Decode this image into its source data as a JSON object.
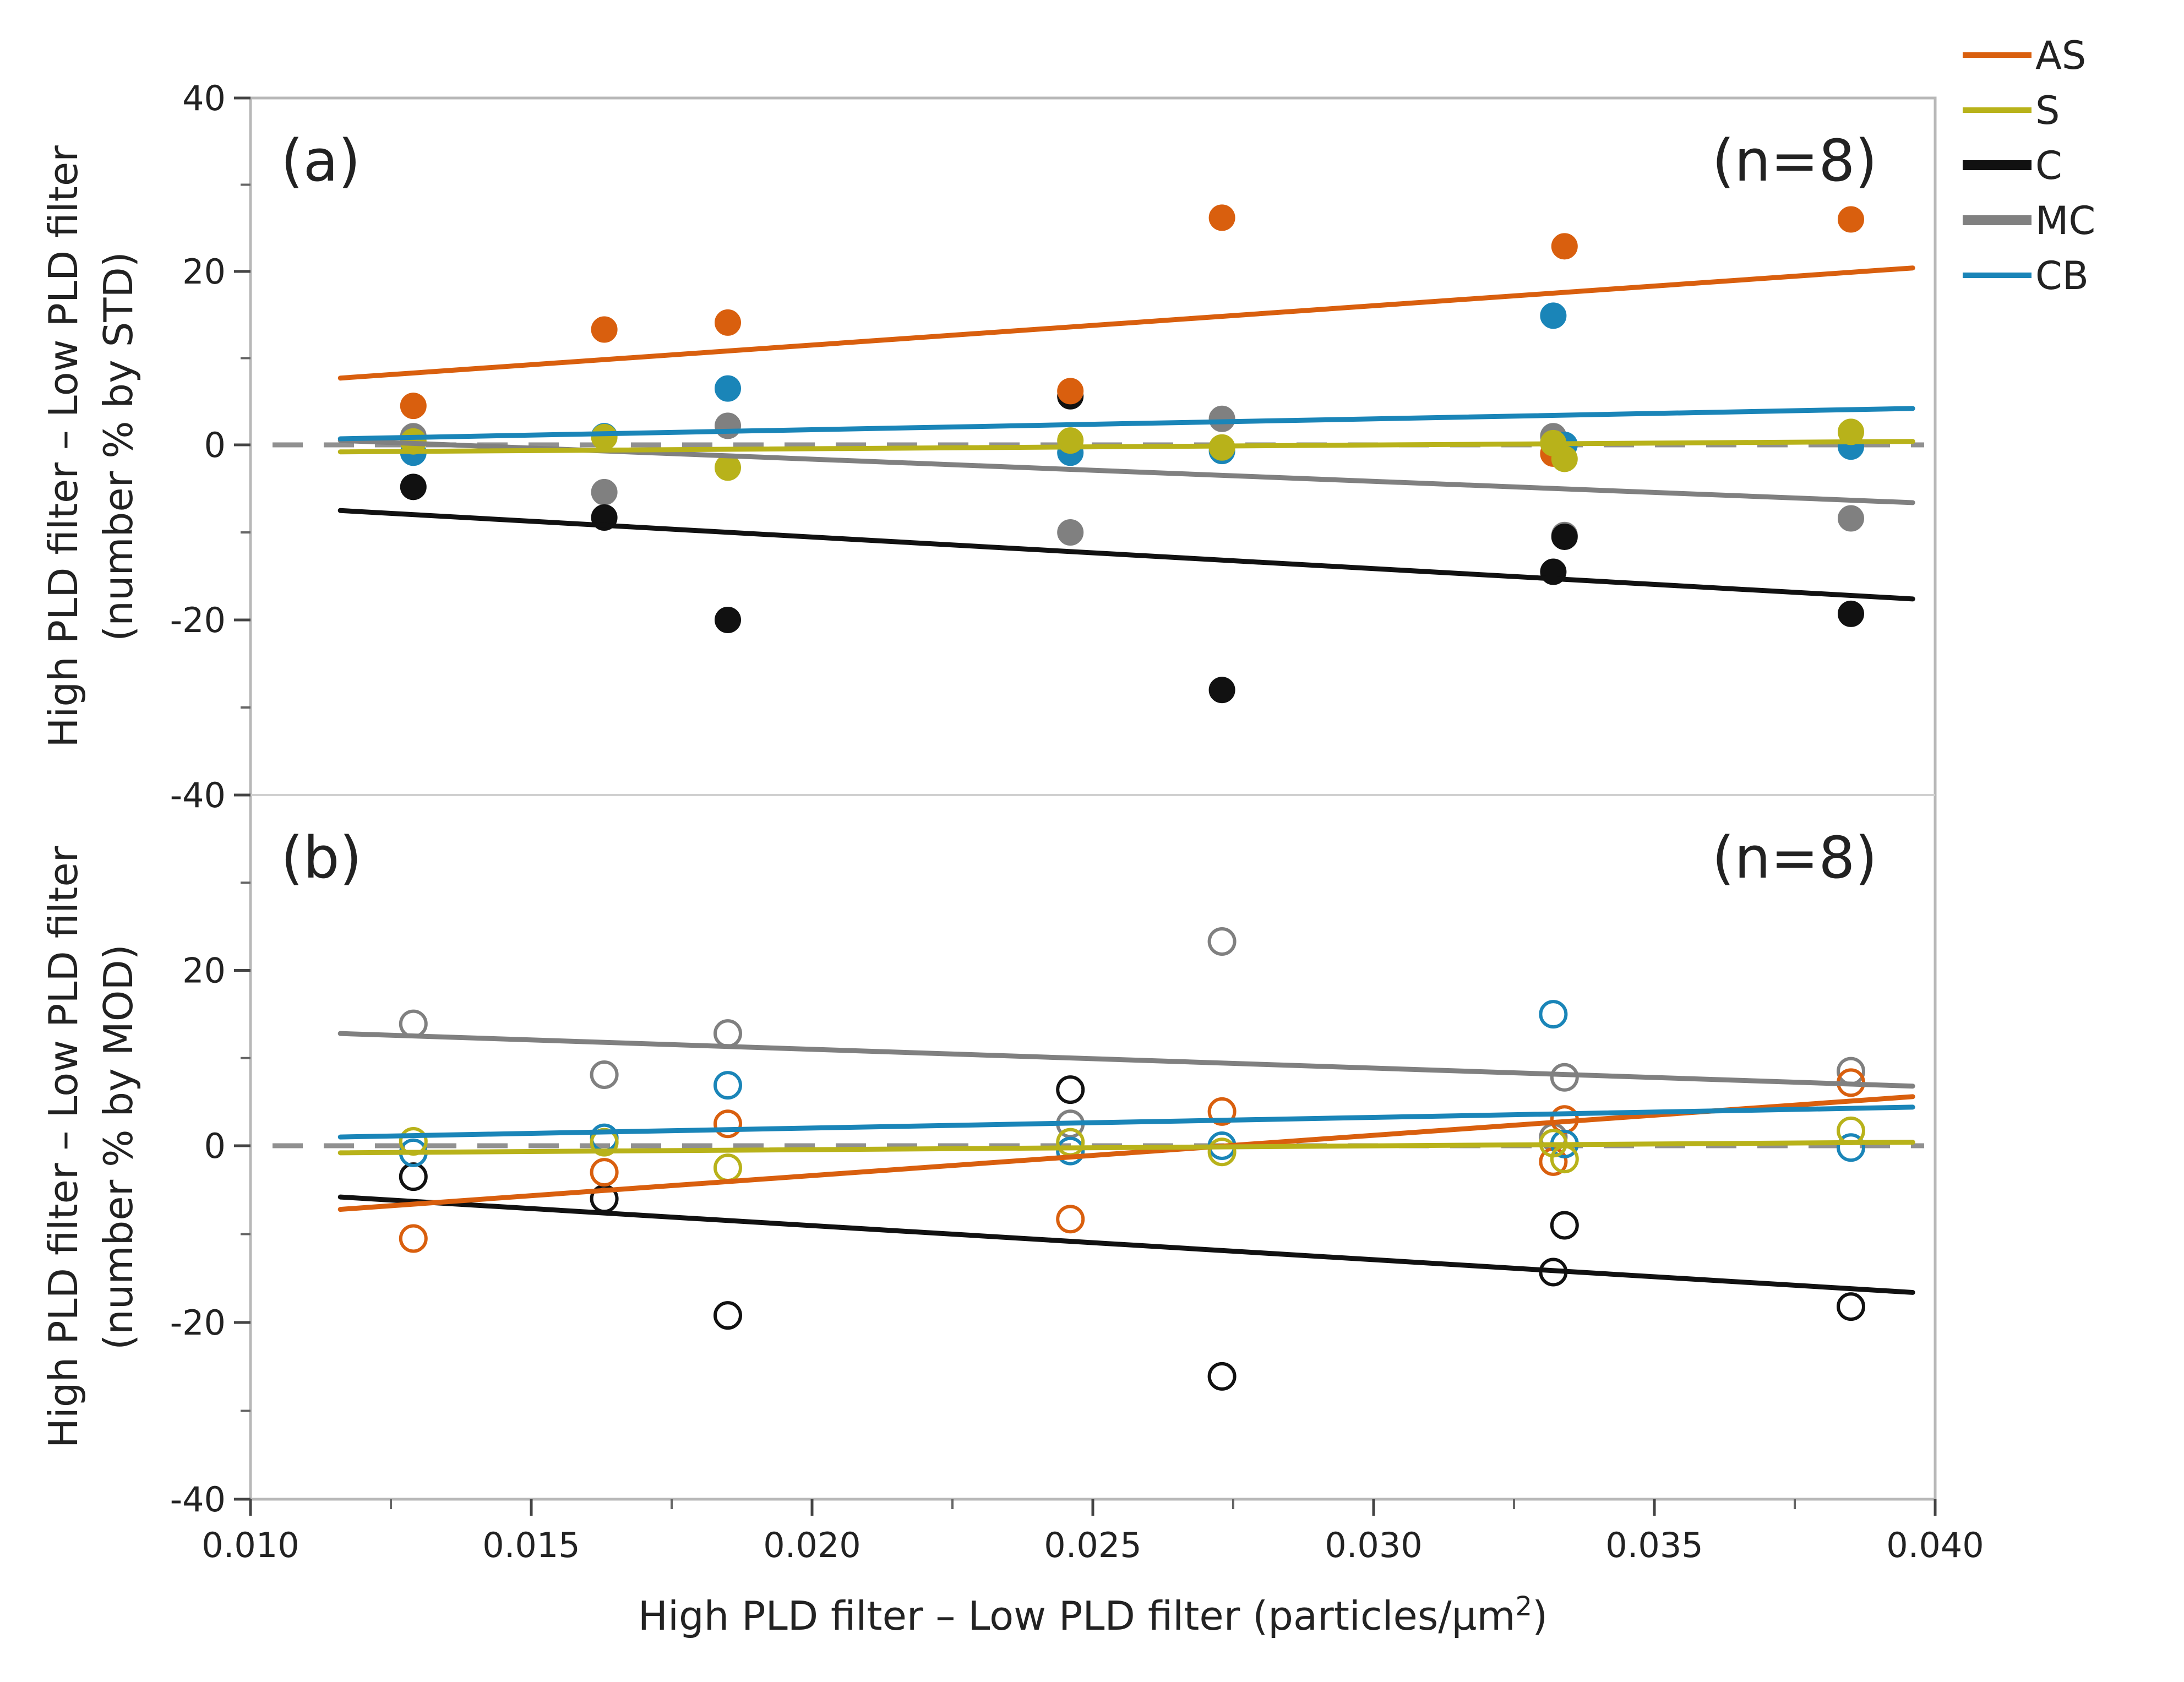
{
  "chart_data": {
    "type": "scatter",
    "xlabel_main": "High PLD filter – Low PLD filter (particles/µm",
    "xlabel_sup": "2",
    "xlabel_close": ")",
    "x_ticks": [
      "0.010",
      "0.015",
      "0.020",
      "0.025",
      "0.030",
      "0.035",
      "0.040"
    ],
    "x_tick_values": [
      0.01,
      0.015,
      0.02,
      0.025,
      0.03,
      0.035,
      0.04
    ],
    "xlim": [
      0.01,
      0.04
    ],
    "x": [
      0.0129,
      0.0163,
      0.0185,
      0.0246,
      0.0273,
      0.0332,
      0.0334,
      0.0385
    ],
    "fit_x_range": [
      0.0116,
      0.0396
    ],
    "legend": [
      {
        "name": "AS",
        "color": "#d95f0e"
      },
      {
        "name": "S",
        "color": "#b8b21a"
      },
      {
        "name": "C",
        "color": "#111111"
      },
      {
        "name": "MC",
        "color": "#808080"
      },
      {
        "name": "CB",
        "color": "#1a85b8"
      }
    ],
    "panels": [
      {
        "label": "(a)",
        "n_label": "(n=8)",
        "ylabel_line1": "High PLD filter – Low PLD filter",
        "ylabel_line2": "(number % by STD)",
        "y_ticks": [
          "40",
          "20",
          "0",
          "-20",
          "-40"
        ],
        "y_tick_values": [
          40,
          20,
          0,
          -20,
          -40
        ],
        "ylim": [
          -40,
          40
        ],
        "marker": "filled",
        "series": [
          {
            "name": "AS",
            "color": "#d95f0e",
            "values": [
              4.5,
              13.3,
              14.1,
              6.2,
              26.2,
              -1.0,
              22.9,
              26.0
            ],
            "fit": [
              7.7,
              20.4
            ]
          },
          {
            "name": "S",
            "color": "#b8b21a",
            "values": [
              0.4,
              0.9,
              -2.6,
              0.5,
              -0.3,
              0.2,
              -1.6,
              1.5
            ],
            "fit": [
              -0.8,
              0.4
            ]
          },
          {
            "name": "C",
            "color": "#111111",
            "values": [
              -4.8,
              -8.3,
              -20.0,
              5.6,
              -28.0,
              -14.5,
              -10.5,
              -19.3
            ],
            "fit": [
              -7.5,
              -17.6
            ]
          },
          {
            "name": "MC",
            "color": "#808080",
            "values": [
              1.0,
              -5.4,
              2.2,
              -10.0,
              3.0,
              1.0,
              -10.3,
              -8.4
            ],
            "fit": [
              0.5,
              -6.6
            ]
          },
          {
            "name": "CB",
            "color": "#1a85b8",
            "values": [
              -0.9,
              1.0,
              6.5,
              -0.9,
              -0.7,
              14.9,
              0.0,
              -0.2
            ],
            "fit": [
              0.7,
              4.2
            ]
          }
        ]
      },
      {
        "label": "(b)",
        "n_label": "(n=8)",
        "ylabel_line1": "High PLD filter – Low PLD filter",
        "ylabel_line2": "(number % by MOD)",
        "y_ticks": [
          "20",
          "0",
          "-20",
          "-40"
        ],
        "y_tick_values": [
          20,
          0,
          -20,
          -40
        ],
        "ylim": [
          -40,
          40
        ],
        "marker": "open",
        "series": [
          {
            "name": "AS",
            "color": "#d95f0e",
            "values": [
              -10.5,
              -3.0,
              2.5,
              -8.3,
              3.9,
              -1.8,
              3.0,
              7.2
            ],
            "fit": [
              -7.2,
              5.6
            ]
          },
          {
            "name": "S",
            "color": "#b8b21a",
            "values": [
              0.5,
              0.4,
              -2.5,
              0.4,
              -0.7,
              0.3,
              -1.5,
              1.7
            ],
            "fit": [
              -0.8,
              0.4
            ]
          },
          {
            "name": "C",
            "color": "#111111",
            "values": [
              -3.5,
              -6.0,
              -19.2,
              6.4,
              -26.1,
              -14.3,
              -9.0,
              -18.2
            ],
            "fit": [
              -5.8,
              -16.6
            ]
          },
          {
            "name": "MC",
            "color": "#808080",
            "values": [
              13.9,
              8.1,
              12.8,
              2.5,
              23.3,
              1.0,
              7.8,
              8.5
            ],
            "fit": [
              12.8,
              6.8
            ]
          },
          {
            "name": "CB",
            "color": "#1a85b8",
            "values": [
              -0.8,
              0.9,
              6.9,
              -0.6,
              0.0,
              15.0,
              0.2,
              -0.2
            ],
            "fit": [
              1.0,
              4.4
            ]
          }
        ]
      }
    ]
  }
}
